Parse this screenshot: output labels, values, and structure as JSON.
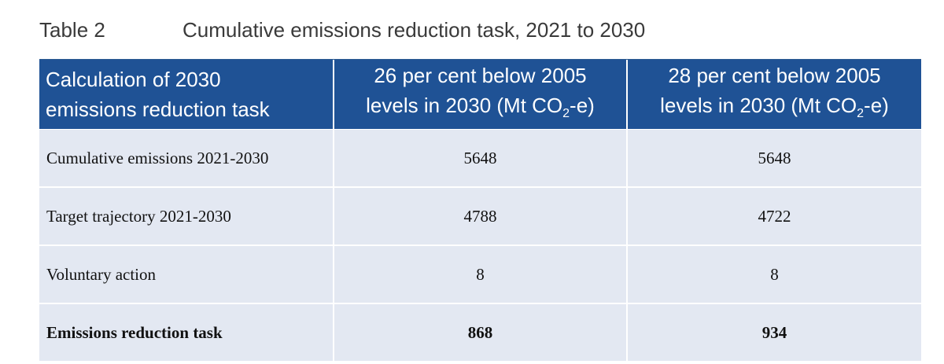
{
  "caption": {
    "number": "Table 2",
    "title": "Cumulative emissions reduction task, 2021 to 2030"
  },
  "table": {
    "headers": {
      "col1": [
        "Calculation of 2030",
        "emissions reduction task"
      ],
      "col2": {
        "line1": "26 per cent below 2005",
        "line2_before": "levels in 2030 (Mt CO",
        "line2_sub": "2",
        "line2_after": "-e)"
      },
      "col3": {
        "line1": "28 per cent below 2005",
        "line2_before": "levels in 2030 (Mt CO",
        "line2_sub": "2",
        "line2_after": "-e)"
      }
    },
    "rows": [
      {
        "label": "Cumulative emissions 2021-2030",
        "v26": "5648",
        "v28": "5648"
      },
      {
        "label": "Target trajectory 2021-2030",
        "v26": "4788",
        "v28": "4722"
      },
      {
        "label": "Voluntary action",
        "v26": "8",
        "v28": "8"
      },
      {
        "label": "Emissions reduction task",
        "v26": "868",
        "v28": "934"
      }
    ]
  },
  "colors": {
    "header_bg": "#1f5295",
    "row_bg": "#e3e8f2",
    "header_text": "#ffffff"
  }
}
